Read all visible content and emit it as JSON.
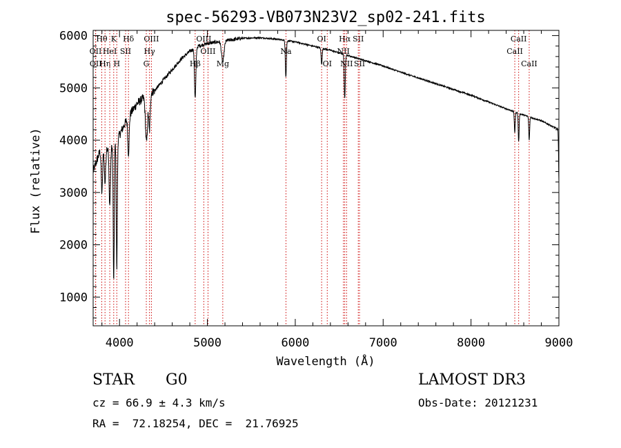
{
  "chart_data": {
    "type": "line",
    "title": "spec-56293-VB073N23V2_sp02-241.fits",
    "xlabel": "Wavelength (Å)",
    "ylabel": "Flux (relative)",
    "xlim": [
      3700,
      9000
    ],
    "ylim": [
      450,
      6100
    ],
    "x_ticks": [
      4000,
      5000,
      6000,
      7000,
      8000,
      9000
    ],
    "x_tick_labels": [
      "4000",
      "5000",
      "6000",
      "7000",
      "8000",
      "9000"
    ],
    "y_ticks": [
      1000,
      2000,
      3000,
      4000,
      5000,
      6000
    ],
    "y_tick_labels": [
      "1000",
      "2000",
      "3000",
      "4000",
      "5000",
      "6000"
    ],
    "grid": false,
    "series": [
      {
        "name": "Flux",
        "color": "#000000",
        "continuum": [
          [
            3700,
            3400
          ],
          [
            3800,
            3900
          ],
          [
            3900,
            3850
          ],
          [
            4000,
            4100
          ],
          [
            4100,
            4450
          ],
          [
            4200,
            4700
          ],
          [
            4300,
            4850
          ],
          [
            4400,
            4950
          ],
          [
            4500,
            5150
          ],
          [
            4600,
            5350
          ],
          [
            4700,
            5550
          ],
          [
            4800,
            5700
          ],
          [
            4900,
            5800
          ],
          [
            5000,
            5850
          ],
          [
            5200,
            5900
          ],
          [
            5400,
            5950
          ],
          [
            5600,
            5960
          ],
          [
            5800,
            5930
          ],
          [
            6000,
            5880
          ],
          [
            6200,
            5800
          ],
          [
            6400,
            5720
          ],
          [
            6600,
            5620
          ],
          [
            6800,
            5520
          ],
          [
            7000,
            5420
          ],
          [
            7200,
            5300
          ],
          [
            7400,
            5190
          ],
          [
            7600,
            5080
          ],
          [
            7800,
            4970
          ],
          [
            8000,
            4860
          ],
          [
            8200,
            4730
          ],
          [
            8400,
            4600
          ],
          [
            8600,
            4480
          ],
          [
            8800,
            4370
          ],
          [
            9000,
            4200
          ]
        ],
        "absorption_features": [
          {
            "center": 3800,
            "depth": 900,
            "width": 8
          },
          {
            "center": 3835,
            "depth": 700,
            "width": 8
          },
          {
            "center": 3889,
            "depth": 1100,
            "width": 8
          },
          {
            "center": 3934,
            "depth": 2700,
            "width": 6
          },
          {
            "center": 3969,
            "depth": 2500,
            "width": 6
          },
          {
            "center": 4102,
            "depth": 700,
            "width": 8
          },
          {
            "center": 4307,
            "depth": 900,
            "width": 12
          },
          {
            "center": 4341,
            "depth": 700,
            "width": 8
          },
          {
            "center": 4861,
            "depth": 950,
            "width": 8
          },
          {
            "center": 5175,
            "depth": 400,
            "width": 14
          },
          {
            "center": 5893,
            "depth": 700,
            "width": 6
          },
          {
            "center": 6300,
            "depth": 300,
            "width": 6
          },
          {
            "center": 6563,
            "depth": 850,
            "width": 6
          },
          {
            "center": 8498,
            "depth": 400,
            "width": 5
          },
          {
            "center": 8542,
            "depth": 550,
            "width": 5
          },
          {
            "center": 8662,
            "depth": 450,
            "width": 5
          },
          {
            "center": 9000,
            "depth": 1000,
            "width": 4
          }
        ]
      }
    ],
    "line_markers": [
      {
        "label": "Hθ",
        "x": 3798,
        "row": 0
      },
      {
        "label": "OII",
        "x": 3727,
        "row": 1
      },
      {
        "label": "OII",
        "x": 3729,
        "row": 2
      },
      {
        "label": "Hη",
        "x": 3835,
        "row": 2
      },
      {
        "label": "K",
        "x": 3934,
        "row": 0
      },
      {
        "label": "HeI",
        "x": 3889,
        "row": 1
      },
      {
        "label": "H",
        "x": 3969,
        "row": 2
      },
      {
        "label": "SII",
        "x": 4069,
        "row": 1
      },
      {
        "label": "Hδ",
        "x": 4102,
        "row": 0
      },
      {
        "label": "OIII",
        "x": 4363,
        "row": 0
      },
      {
        "label": "Hγ",
        "x": 4341,
        "row": 1
      },
      {
        "label": "G",
        "x": 4305,
        "row": 2
      },
      {
        "label": "Hβ",
        "x": 4861,
        "row": 2
      },
      {
        "label": "OIII",
        "x": 4959,
        "row": 0
      },
      {
        "label": "OIII",
        "x": 5007,
        "row": 1
      },
      {
        "label": "Mg",
        "x": 5175,
        "row": 2
      },
      {
        "label": "Na",
        "x": 5894,
        "row": 1
      },
      {
        "label": "OI",
        "x": 6300,
        "row": 0
      },
      {
        "label": "OI",
        "x": 6364,
        "row": 2
      },
      {
        "label": "Hα",
        "x": 6563,
        "row": 0
      },
      {
        "label": "NII",
        "x": 6548,
        "row": 1
      },
      {
        "label": "NII",
        "x": 6584,
        "row": 2
      },
      {
        "label": "SII",
        "x": 6717,
        "row": 0
      },
      {
        "label": "SII",
        "x": 6731,
        "row": 2
      },
      {
        "label": "CaII",
        "x": 8542,
        "row": 0
      },
      {
        "label": "CaII",
        "x": 8498,
        "row": 1
      },
      {
        "label": "CaII",
        "x": 8662,
        "row": 2
      }
    ]
  },
  "info": {
    "class_label": "STAR",
    "subclass": "G0",
    "survey": "LAMOST DR3",
    "redshift": "cz = 66.9 ± 4.3 km/s",
    "obs_date": "Obs-Date: 20121231",
    "coords": "RA =  72.18254, DEC =  21.76925"
  }
}
